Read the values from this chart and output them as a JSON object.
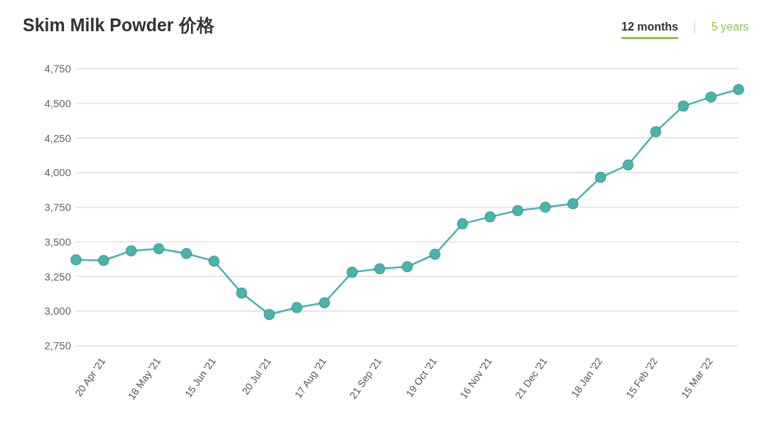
{
  "chart_data": {
    "type": "line",
    "title": "Skim Milk Powder 价格",
    "annotations": [
      "12 months",
      "5 years"
    ],
    "categories": [
      null,
      "20 Apr '21",
      null,
      "18 May '21",
      null,
      "15 Jun '21",
      null,
      "20 Jul '21",
      null,
      "17 Aug '21",
      null,
      "21 Sep '21",
      null,
      "19 Oct '21",
      null,
      "16 Nov '21",
      null,
      "21 Dec '21",
      null,
      "18 Jan '22",
      null,
      "15 Feb '22",
      null,
      "15 Mar '22",
      null
    ],
    "series": [
      {
        "color": "#45b5ae",
        "values": [
          3370,
          3365,
          3435,
          3450,
          3415,
          3360,
          3130,
          2975,
          3025,
          3060,
          3280,
          3305,
          3320,
          3410,
          3630,
          3680,
          3725,
          3750,
          3775,
          3965,
          4055,
          4295,
          4480,
          4545,
          4600
        ]
      }
    ],
    "ylim": [
      2750,
      4750
    ],
    "yticks": [
      {
        "value": 2750,
        "label": "2,750"
      },
      {
        "value": 3000,
        "label": "3,000"
      },
      {
        "value": 3250,
        "label": "3,250"
      },
      {
        "value": 3500,
        "label": "3,500"
      },
      {
        "value": 3750,
        "label": "3,750"
      },
      {
        "value": 4000,
        "label": "4,000"
      },
      {
        "value": 4250,
        "label": "4,250"
      },
      {
        "value": 4500,
        "label": "4,500"
      },
      {
        "value": 4750,
        "label": "4,750"
      }
    ],
    "grid": "y",
    "marker": "circle",
    "line_style": "solid"
  }
}
